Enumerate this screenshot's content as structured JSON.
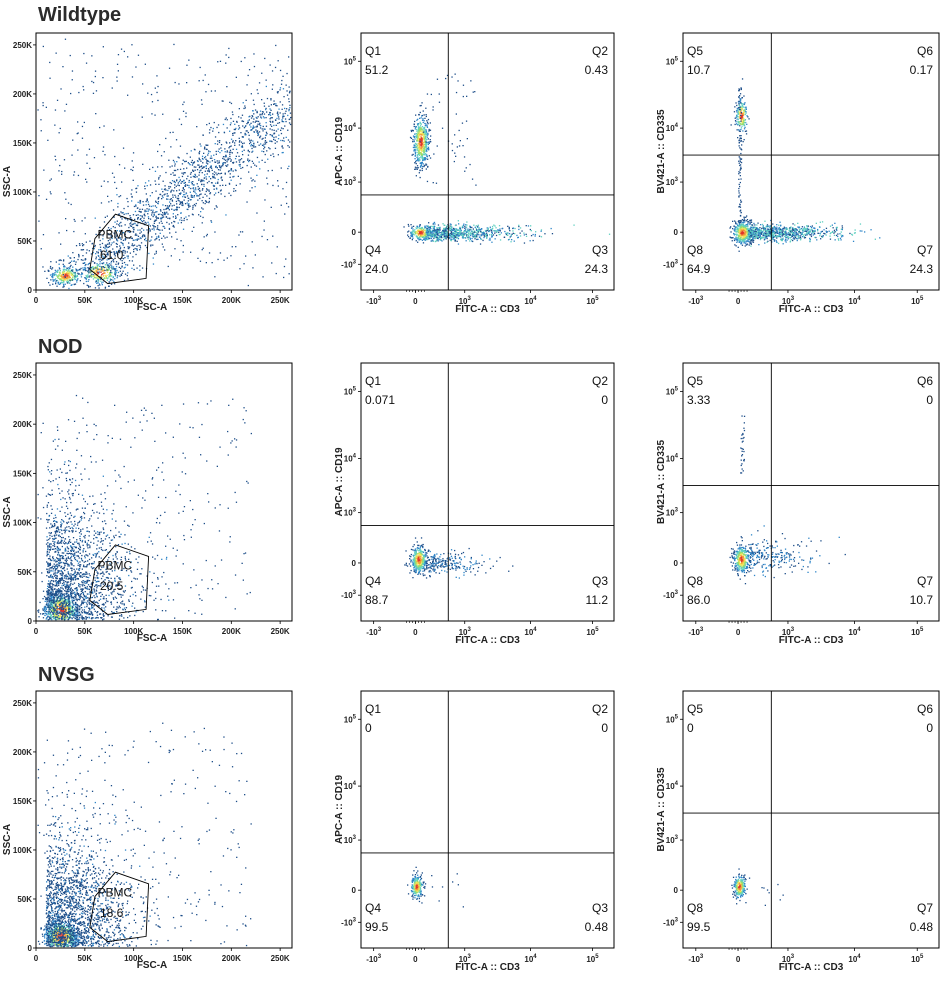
{
  "colors": {
    "dots": [
      "#1d4e89",
      "#2f86c8",
      "#5fd0c0",
      "#9bdc6c",
      "#f2e35a",
      "#f29a3a",
      "#e0352b"
    ],
    "frame": "#000000"
  },
  "rows": [
    {
      "title": "Wildtype"
    },
    {
      "title": "NOD"
    },
    {
      "title": "NVSG"
    }
  ],
  "chart_data": [
    {
      "type": "scatter",
      "sample": "Wildtype",
      "xlabel": "FSC-A",
      "ylabel": "SSC-A",
      "xticks": [
        "0",
        "50K",
        "100K",
        "150K",
        "200K",
        "250K"
      ],
      "yticks": [
        "0",
        "50K",
        "100K",
        "150K",
        "200K",
        "250K"
      ],
      "xlim": [
        0,
        262144
      ],
      "ylim": [
        0,
        262144
      ],
      "gate": {
        "name": "PBMC",
        "percent": "61.0"
      }
    },
    {
      "type": "scatter",
      "sample": "Wildtype",
      "xlabel": "FITC-A :: CD3",
      "ylabel": "APC-A :: CD19",
      "xticks": [
        "-10",
        "0",
        "10",
        "10",
        "10"
      ],
      "yticks": [
        "-10",
        "0",
        "10",
        "10",
        "10"
      ],
      "quadrants": [
        {
          "name": "Q1",
          "percent": "51.2"
        },
        {
          "name": "Q2",
          "percent": "0.43"
        },
        {
          "name": "Q3",
          "percent": "24.3"
        },
        {
          "name": "Q4",
          "percent": "24.0"
        }
      ]
    },
    {
      "type": "scatter",
      "sample": "Wildtype",
      "xlabel": "FITC-A :: CD3",
      "ylabel": "BV421-A :: CD335",
      "xticks": [
        "-10",
        "0",
        "10",
        "10",
        "10"
      ],
      "yticks": [
        "-10",
        "0",
        "10",
        "10",
        "10"
      ],
      "quadrants": [
        {
          "name": "Q5",
          "percent": "10.7"
        },
        {
          "name": "Q6",
          "percent": "0.17"
        },
        {
          "name": "Q7",
          "percent": "24.3"
        },
        {
          "name": "Q8",
          "percent": "64.9"
        }
      ]
    },
    {
      "type": "scatter",
      "sample": "NOD",
      "xlabel": "FSC-A",
      "ylabel": "SSC-A",
      "xticks": [
        "0",
        "50K",
        "100K",
        "150K",
        "200K",
        "250K"
      ],
      "yticks": [
        "0",
        "50K",
        "100K",
        "150K",
        "200K",
        "250K"
      ],
      "xlim": [
        0,
        262144
      ],
      "ylim": [
        0,
        262144
      ],
      "gate": {
        "name": "PBMC",
        "percent": "20.5"
      }
    },
    {
      "type": "scatter",
      "sample": "NOD",
      "xlabel": "FITC-A :: CD3",
      "ylabel": "APC-A :: CD19",
      "xticks": [
        "-10",
        "0",
        "10",
        "10",
        "10"
      ],
      "yticks": [
        "-10",
        "0",
        "10",
        "10",
        "10"
      ],
      "quadrants": [
        {
          "name": "Q1",
          "percent": "0.071"
        },
        {
          "name": "Q2",
          "percent": "0"
        },
        {
          "name": "Q3",
          "percent": "11.2"
        },
        {
          "name": "Q4",
          "percent": "88.7"
        }
      ]
    },
    {
      "type": "scatter",
      "sample": "NOD",
      "xlabel": "FITC-A :: CD3",
      "ylabel": "BV421-A :: CD335",
      "xticks": [
        "-10",
        "0",
        "10",
        "10",
        "10"
      ],
      "yticks": [
        "-10",
        "0",
        "10",
        "10",
        "10"
      ],
      "quadrants": [
        {
          "name": "Q5",
          "percent": "3.33"
        },
        {
          "name": "Q6",
          "percent": "0"
        },
        {
          "name": "Q7",
          "percent": "10.7"
        },
        {
          "name": "Q8",
          "percent": "86.0"
        }
      ]
    },
    {
      "type": "scatter",
      "sample": "NVSG",
      "xlabel": "FSC-A",
      "ylabel": "SSC-A",
      "xticks": [
        "0",
        "50K",
        "100K",
        "150K",
        "200K",
        "250K"
      ],
      "yticks": [
        "0",
        "50K",
        "100K",
        "150K",
        "200K",
        "250K"
      ],
      "xlim": [
        0,
        262144
      ],
      "ylim": [
        0,
        262144
      ],
      "gate": {
        "name": "PBMC",
        "percent": "18.6"
      }
    },
    {
      "type": "scatter",
      "sample": "NVSG",
      "xlabel": "FITC-A :: CD3",
      "ylabel": "APC-A :: CD19",
      "xticks": [
        "-10",
        "0",
        "10",
        "10",
        "10"
      ],
      "yticks": [
        "-10",
        "0",
        "10",
        "10",
        "10"
      ],
      "quadrants": [
        {
          "name": "Q1",
          "percent": "0"
        },
        {
          "name": "Q2",
          "percent": "0"
        },
        {
          "name": "Q3",
          "percent": "0.48"
        },
        {
          "name": "Q4",
          "percent": "99.5"
        }
      ]
    },
    {
      "type": "scatter",
      "sample": "NVSG",
      "xlabel": "FITC-A :: CD3",
      "ylabel": "BV421-A :: CD335",
      "xticks": [
        "-10",
        "0",
        "10",
        "10",
        "10"
      ],
      "yticks": [
        "-10",
        "0",
        "10",
        "10",
        "10"
      ],
      "quadrants": [
        {
          "name": "Q5",
          "percent": "0"
        },
        {
          "name": "Q6",
          "percent": "0"
        },
        {
          "name": "Q7",
          "percent": "0.48"
        },
        {
          "name": "Q8",
          "percent": "99.5"
        }
      ]
    }
  ]
}
